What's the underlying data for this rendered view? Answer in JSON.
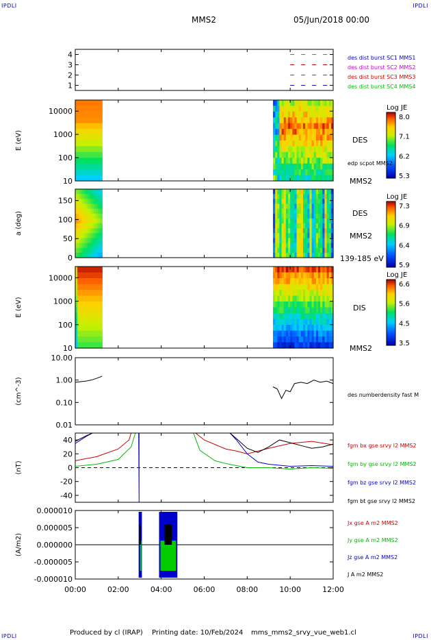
{
  "header": {
    "corner_tl": "IPDLI",
    "corner_tr": "IPDLI",
    "corner_bl": "IPDLI",
    "corner_br": "IPDLI",
    "spacecraft": "MMS2",
    "date": "05/Jun/2018 00:00"
  },
  "footer": {
    "produced": "Produced by cl (IRAP)",
    "printing": "Printing date: 10/Feb/2024",
    "file": "mms_mms2_srvy_vue_web1.cl"
  },
  "colors": {
    "black": "#000000",
    "red": "#cc0000",
    "green": "#00bb00",
    "blue": "#0000cc",
    "magenta": "#cc00cc"
  },
  "time_axis": {
    "range_hours": [
      0,
      12
    ],
    "tick_labels": [
      "00:00",
      "02:00",
      "04:00",
      "06:00",
      "08:00",
      "10:00",
      "12:00"
    ]
  },
  "chart_data": [
    {
      "type": "line",
      "panel": "burst_status",
      "yticks": [
        "1",
        "2",
        "3",
        "4"
      ],
      "ylim": [
        0.5,
        4.5
      ],
      "series": [
        {
          "name": "des dist burst SC1 MMS1",
          "color": "#0000cc",
          "level": 1,
          "x": [
            10.0,
            11.9
          ]
        },
        {
          "name": "des dist burst SC2 MMS2",
          "color": "#cc00cc",
          "level": 2,
          "x": [
            10.0,
            11.9
          ]
        },
        {
          "name": "des dist burst SC3 MMS3",
          "color": "#cc0000",
          "level": 3,
          "x": [
            10.0,
            11.9
          ]
        },
        {
          "name": "des dist burst SC4 MMS4",
          "color": "#00bb00",
          "level": 4,
          "x": [
            10.0,
            11.9
          ]
        }
      ]
    },
    {
      "type": "heatmap",
      "panel": "des_energy",
      "ylabel": "E (eV)",
      "ylim": [
        10,
        30000
      ],
      "yscale": "log",
      "yticks": [
        "10",
        "100",
        "1000",
        "10000"
      ],
      "right_labels": [
        "DES",
        "edp scpot MMS2",
        "MMS2"
      ],
      "colorbar": {
        "title": "Log JE",
        "ticks": [
          "8.0",
          "7.1",
          "6.2",
          "5.3"
        ]
      },
      "intervals_hours": [
        [
          0.0,
          1.25
        ],
        [
          9.2,
          12.0
        ]
      ]
    },
    {
      "type": "heatmap",
      "panel": "des_pitch_angle",
      "ylabel": "a (deg)",
      "ylim": [
        0,
        180
      ],
      "yticks": [
        "0",
        "50",
        "100",
        "150"
      ],
      "right_labels": [
        "DES",
        "MMS2",
        "139-185 eV"
      ],
      "colorbar": {
        "title": "Log JE",
        "ticks": [
          "7.3",
          "6.9",
          "6.4",
          "5.9"
        ]
      },
      "intervals_hours": [
        [
          0.0,
          1.25
        ],
        [
          9.2,
          12.0
        ]
      ]
    },
    {
      "type": "heatmap",
      "panel": "dis_energy",
      "ylabel": "E (eV)",
      "ylim": [
        10,
        30000
      ],
      "yscale": "log",
      "yticks": [
        "10",
        "100",
        "1000",
        "10000"
      ],
      "right_labels": [
        "DIS",
        "MMS2"
      ],
      "colorbar": {
        "title": "Log JE",
        "ticks": [
          "6.6",
          "5.6",
          "4.5",
          "3.5"
        ]
      },
      "intervals_hours": [
        [
          0.0,
          1.25
        ],
        [
          9.2,
          12.0
        ]
      ]
    },
    {
      "type": "line",
      "panel": "density",
      "ylabel": "(cm^-3)",
      "ylim": [
        0.01,
        10
      ],
      "yscale": "log",
      "yticks": [
        "0.01",
        "0.10",
        "1.00",
        "10.00"
      ],
      "series": [
        {
          "name": "des numberdensity fast M",
          "color": "#000000",
          "segments": [
            {
              "x": [
                0.0,
                0.25,
                0.5,
                0.75,
                1.0,
                1.25
              ],
              "y": [
                0.8,
                0.85,
                0.9,
                1.0,
                1.2,
                1.5
              ]
            },
            {
              "x": [
                9.2,
                9.4,
                9.6,
                9.8,
                10.0,
                10.2,
                10.5,
                10.8,
                11.1,
                11.4,
                11.7,
                12.0
              ],
              "y": [
                0.5,
                0.4,
                0.15,
                0.35,
                0.3,
                0.7,
                0.8,
                0.7,
                1.0,
                0.8,
                0.9,
                0.7
              ]
            }
          ]
        }
      ]
    },
    {
      "type": "line",
      "panel": "fgm",
      "ylabel": "(nT)",
      "ylim": [
        -50,
        50
      ],
      "yticks": [
        "-40",
        "-20",
        "0",
        "20",
        "40"
      ],
      "series": [
        {
          "name": "fgm bx gse srvy l2 MMS2",
          "color": "#cc0000",
          "x": [
            0.0,
            1.0,
            2.0,
            2.5,
            2.6,
            5.6,
            6.0,
            7.0,
            7.5,
            8.0,
            9.0,
            10.0,
            11.0,
            12.0
          ],
          "y": [
            10,
            16,
            27,
            40,
            50,
            50,
            40,
            27,
            24,
            20,
            28,
            35,
            38,
            33
          ]
        },
        {
          "name": "fgm by gse srvy l2 MMS2",
          "color": "#00bb00",
          "x": [
            0.0,
            1.0,
            2.0,
            2.6,
            2.8,
            5.5,
            5.8,
            6.5,
            7.0,
            7.5,
            8.0,
            9.0,
            10.0,
            11.0,
            12.0
          ],
          "y": [
            2,
            5,
            12,
            30,
            50,
            50,
            25,
            10,
            6,
            3,
            0,
            0,
            -2,
            0,
            -1
          ]
        },
        {
          "name": "fgm bz gse srvy l2 MMS2",
          "color": "#0000cc",
          "x": [
            0.0,
            0.5,
            0.8,
            2.95,
            2.95,
            2.97,
            2.97,
            7.2,
            7.5,
            8.0,
            8.5,
            9.0,
            10.0,
            11.0,
            12.0
          ],
          "y": [
            35,
            45,
            50,
            50,
            50,
            -50,
            50,
            50,
            40,
            20,
            8,
            5,
            2,
            3,
            2
          ]
        },
        {
          "name": "fgm bt gse srvy l2 MMS2",
          "color": "#000000",
          "x": [
            0.0,
            0.5,
            0.8,
            7.2,
            7.5,
            8.0,
            8.5,
            9.0,
            9.5,
            10.0,
            10.5,
            11.0,
            11.5,
            12.0
          ],
          "y": [
            38,
            46,
            50,
            50,
            42,
            28,
            22,
            30,
            40,
            36,
            32,
            28,
            30,
            34
          ]
        }
      ]
    },
    {
      "type": "line",
      "panel": "current_density",
      "ylabel": "(A/m2)",
      "ylim": [
        -1e-05,
        1e-05
      ],
      "yticks": [
        "-0.000010",
        "-0.000005",
        "0.000000",
        "0.000005",
        "0.000010"
      ],
      "series": [
        {
          "name": "Jx gse A m2 MMS2",
          "color": "#cc0000"
        },
        {
          "name": "Jy gse A m2 MMS2",
          "color": "#00bb00"
        },
        {
          "name": "Jz gse A m2 MMS2",
          "color": "#0000cc"
        },
        {
          "name": "J A m2 MMS2",
          "color": "#000000"
        }
      ],
      "active_intervals_hours": [
        [
          2.95,
          3.1
        ],
        [
          3.9,
          4.75
        ]
      ]
    }
  ]
}
